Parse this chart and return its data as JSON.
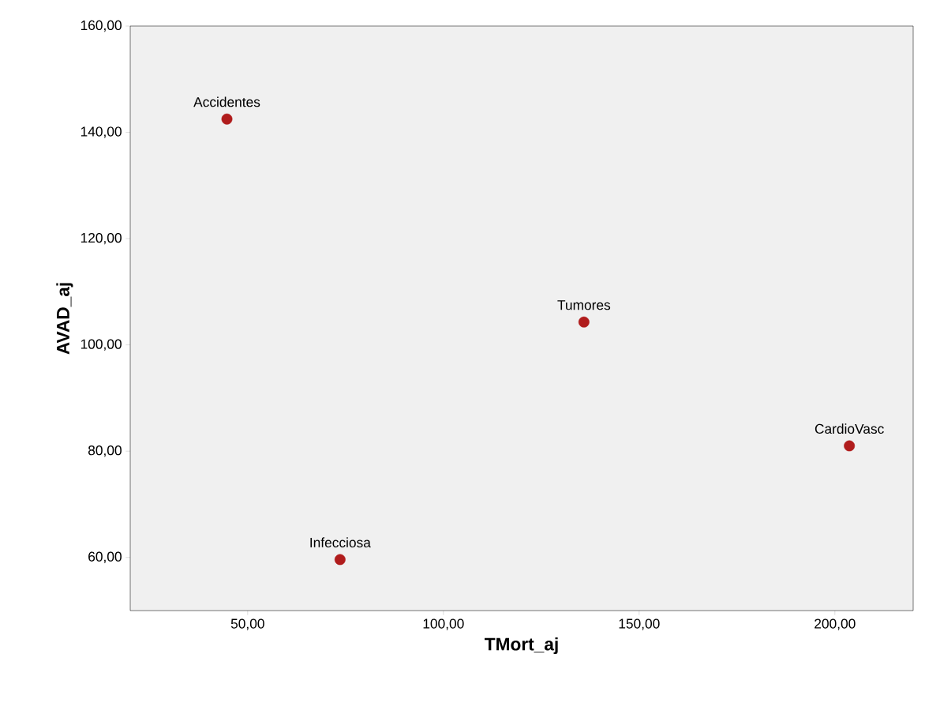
{
  "chart_data": {
    "type": "scatter",
    "xlabel": "TMort_aj",
    "ylabel": "AVAD_aj",
    "x": [
      44.7,
      73.6,
      135.9,
      203.7
    ],
    "values": [
      142.5,
      59.6,
      104.3,
      81.0
    ],
    "color": "#b01c1c",
    "marker": "circle",
    "xlim": [
      20,
      220
    ],
    "ylim": [
      50,
      160
    ],
    "xticks": [
      {
        "value": 50,
        "label": "50,00"
      },
      {
        "value": 100,
        "label": "100,00"
      },
      {
        "value": 150,
        "label": "150,00"
      },
      {
        "value": 200,
        "label": "200,00"
      }
    ],
    "yticks": [
      {
        "value": 60,
        "label": "60,00"
      },
      {
        "value": 80,
        "label": "80,00"
      },
      {
        "value": 100,
        "label": "100,00"
      },
      {
        "value": 120,
        "label": "120,00"
      },
      {
        "value": 140,
        "label": "140,00"
      },
      {
        "value": 160,
        "label": "160,00"
      }
    ],
    "annotations": [
      {
        "text": "Accidentes",
        "x": 44.7,
        "y": 142.5
      },
      {
        "text": "Infecciosa",
        "x": 73.6,
        "y": 59.6
      },
      {
        "text": "Tumores",
        "x": 135.9,
        "y": 104.3
      },
      {
        "text": "CardioVasc",
        "x": 203.7,
        "y": 81.0
      }
    ]
  }
}
